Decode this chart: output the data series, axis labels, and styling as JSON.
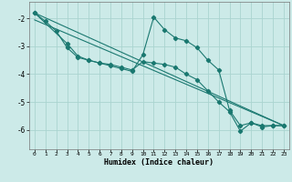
{
  "xlabel": "Humidex (Indice chaleur)",
  "background_color": "#cceae8",
  "grid_color": "#aad4d0",
  "line_color": "#1a7870",
  "xlim": [
    -0.5,
    23.5
  ],
  "ylim": [
    -6.7,
    -1.4
  ],
  "xticks": [
    0,
    1,
    2,
    3,
    4,
    5,
    6,
    7,
    8,
    9,
    10,
    11,
    12,
    13,
    14,
    15,
    16,
    17,
    18,
    19,
    20,
    21,
    22,
    23
  ],
  "yticks": [
    -6,
    -5,
    -4,
    -3,
    -2
  ],
  "line1_x": [
    0,
    1,
    2,
    3,
    4,
    5,
    6,
    7,
    8,
    9,
    10,
    11,
    12,
    13,
    14,
    15,
    16,
    17,
    18,
    19,
    20,
    21,
    22,
    23
  ],
  "line1_y": [
    -1.8,
    -2.1,
    -2.45,
    -3.05,
    -3.4,
    -3.5,
    -3.6,
    -3.7,
    -3.8,
    -3.9,
    -3.3,
    -1.95,
    -2.4,
    -2.7,
    -2.8,
    -3.05,
    -3.5,
    -3.85,
    -5.3,
    -5.85,
    -5.75,
    -5.9,
    -5.85,
    -5.85
  ],
  "line2_x": [
    0,
    3,
    4,
    5,
    6,
    7,
    8,
    9,
    10,
    11,
    12,
    13,
    14,
    15,
    16,
    17,
    18,
    19,
    20,
    21,
    22,
    23
  ],
  "line2_y": [
    -1.8,
    -2.9,
    -3.35,
    -3.5,
    -3.6,
    -3.65,
    -3.75,
    -3.85,
    -3.55,
    -3.6,
    -3.65,
    -3.75,
    -4.0,
    -4.2,
    -4.6,
    -5.0,
    -5.35,
    -6.05,
    -5.75,
    -5.85,
    -5.85,
    -5.85
  ],
  "line3_x": [
    0,
    23
  ],
  "line3_y": [
    -1.8,
    -5.85
  ],
  "line4_x": [
    0,
    23
  ],
  "line4_y": [
    -2.05,
    -5.85
  ]
}
